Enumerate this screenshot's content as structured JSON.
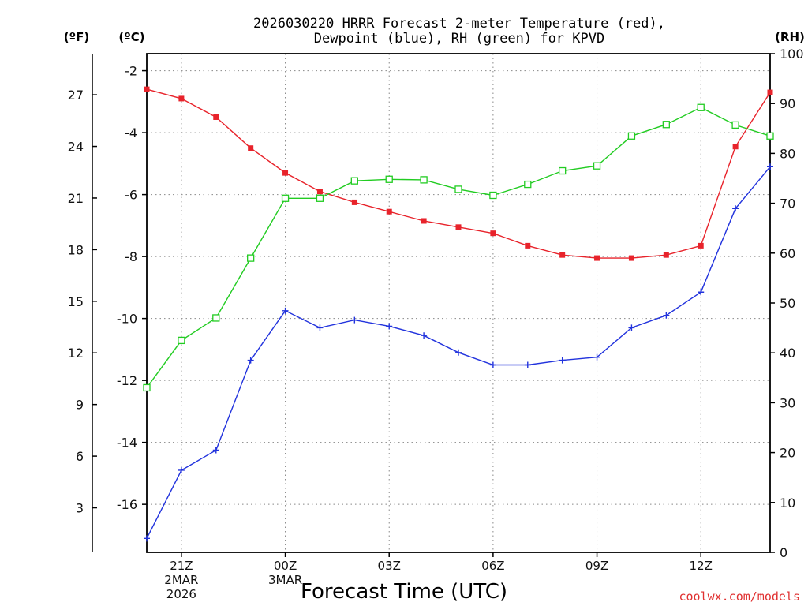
{
  "chart_data": {
    "type": "line",
    "title_line1": "2026030220 HRRR Forecast 2-meter Temperature (red),",
    "title_line2": "Dewpoint (blue), RH (green) for KPVD",
    "unit_left_f": "(ºF)",
    "unit_left_c": "(ºC)",
    "unit_right": "(RH)",
    "xlabel": "Forecast Time (UTC)",
    "credit": "coolwx.com/models",
    "colors": {
      "temp": "#e8232b",
      "dewpoint": "#2233dd",
      "rh": "#22cc22",
      "grid": "#888888",
      "credit": "#e03030"
    },
    "celsius_axis": {
      "min": -17.55,
      "max": -1.45,
      "ticks": [
        "-2",
        "-4",
        "-6",
        "-8",
        "-10",
        "-12",
        "-14",
        "-16"
      ],
      "tick_values": [
        -2,
        -4,
        -6,
        -8,
        -10,
        -12,
        -14,
        -16
      ]
    },
    "fahrenheit_axis": {
      "ticks": [
        "27",
        "24",
        "21",
        "18",
        "15",
        "12",
        "9",
        "6",
        "3"
      ],
      "tick_values": [
        27,
        24,
        21,
        18,
        15,
        12,
        9,
        6,
        3
      ]
    },
    "rh_axis": {
      "min": 0,
      "max": 100,
      "ticks": [
        "100",
        "90",
        "80",
        "70",
        "60",
        "50",
        "40",
        "30",
        "20",
        "10",
        "0"
      ],
      "tick_values": [
        100,
        90,
        80,
        70,
        60,
        50,
        40,
        30,
        20,
        10,
        0
      ]
    },
    "x_ticks": [
      {
        "index": 1,
        "label": "21Z",
        "sub1": "2MAR",
        "sub2": "2026"
      },
      {
        "index": 4,
        "label": "00Z",
        "sub1": "3MAR",
        "sub2": ""
      },
      {
        "index": 7,
        "label": "03Z",
        "sub1": "",
        "sub2": ""
      },
      {
        "index": 10,
        "label": "06Z",
        "sub1": "",
        "sub2": ""
      },
      {
        "index": 13,
        "label": "09Z",
        "sub1": "",
        "sub2": ""
      },
      {
        "index": 16,
        "label": "12Z",
        "sub1": "",
        "sub2": ""
      }
    ],
    "x_count": 19,
    "series": [
      {
        "name": "Temperature",
        "unit": "C",
        "color_key": "temp",
        "marker": "square-filled",
        "values": [
          -2.6,
          -2.9,
          -3.5,
          -4.5,
          -5.3,
          -5.9,
          -6.25,
          -6.55,
          -6.85,
          -7.05,
          -7.25,
          -7.65,
          -7.95,
          -8.05,
          -8.05,
          -7.95,
          -7.65,
          -4.45,
          -2.7
        ]
      },
      {
        "name": "Dewpoint",
        "unit": "C",
        "color_key": "dewpoint",
        "marker": "plus",
        "values": [
          -17.1,
          -14.9,
          -14.25,
          -11.35,
          -9.75,
          -10.3,
          -10.05,
          -10.25,
          -10.55,
          -11.1,
          -11.5,
          -11.5,
          -11.35,
          -11.25,
          -10.3,
          -9.9,
          -9.15,
          -6.45,
          -5.1
        ]
      },
      {
        "name": "RH",
        "unit": "%",
        "color_key": "rh",
        "marker": "square-open",
        "values": [
          33,
          42.5,
          47,
          59,
          71,
          71,
          74.5,
          74.8,
          74.7,
          72.8,
          71.6,
          73.8,
          76.5,
          77.5,
          83.5,
          85.8,
          89.2,
          85.7,
          83.5
        ]
      }
    ]
  }
}
